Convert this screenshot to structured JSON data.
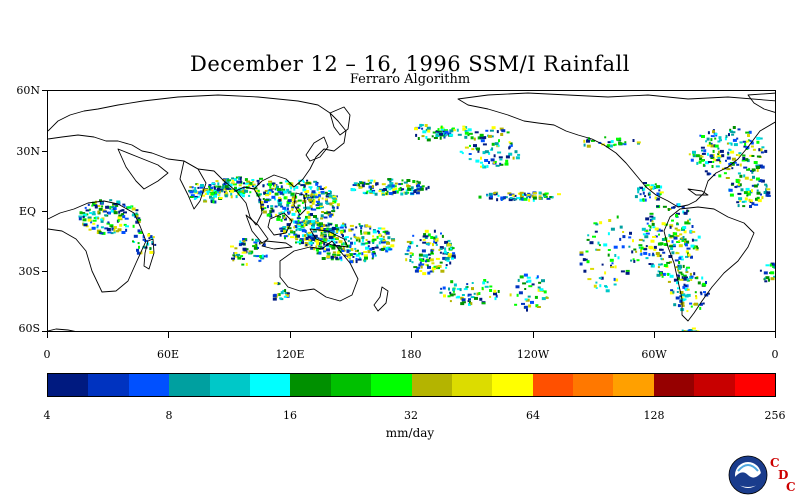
{
  "title": "December 12 – 16, 1996 SSM/I Rainfall",
  "subtitle": "Ferraro Algorithm",
  "map": {
    "lat_labels": [
      "60N",
      "30N",
      "EQ",
      "30S",
      "60S"
    ],
    "lat_values": [
      60,
      30,
      0,
      -30,
      -60
    ],
    "lon_labels": [
      "0",
      "60E",
      "120E",
      "180",
      "120W",
      "60W",
      "0"
    ],
    "lon_values": [
      0,
      60,
      120,
      180,
      240,
      300,
      360
    ]
  },
  "colorbar": {
    "colors": [
      "#001a80",
      "#0033c0",
      "#0050ff",
      "#00a0a0",
      "#00c8c8",
      "#00ffff",
      "#009000",
      "#00c000",
      "#00ff00",
      "#b4b400",
      "#dcdc00",
      "#ffff00",
      "#ff5000",
      "#ff7800",
      "#ffa000",
      "#960000",
      "#c80000",
      "#ff0000"
    ],
    "labels": [
      "4",
      "8",
      "16",
      "32",
      "64",
      "128",
      "256"
    ],
    "units": "mm/day"
  },
  "logo": {
    "name": "NOAA",
    "org_letters": [
      "C",
      "D",
      "C"
    ]
  }
}
